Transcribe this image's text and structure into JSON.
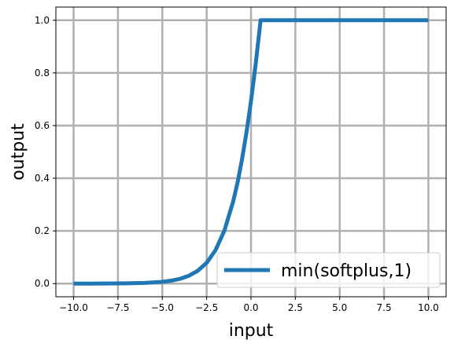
{
  "chart_data": {
    "type": "line",
    "xlabel": "input",
    "ylabel": "output",
    "xlim": [
      -11.0,
      11.0
    ],
    "ylim": [
      -0.05,
      1.05
    ],
    "xticks": [
      -10.0,
      -7.5,
      -5.0,
      -2.5,
      0.0,
      2.5,
      5.0,
      7.5,
      10.0
    ],
    "xtick_labels": [
      "−10.0",
      "−7.5",
      "−5.0",
      "−2.5",
      "0.0",
      "2.5",
      "5.0",
      "7.5",
      "10.0"
    ],
    "yticks": [
      0.0,
      0.2,
      0.4,
      0.6,
      0.8,
      1.0
    ],
    "ytick_labels": [
      "0.0",
      "0.2",
      "0.4",
      "0.6",
      "0.8",
      "1.0"
    ],
    "grid": true,
    "legend_position": "lower-right",
    "series": [
      {
        "name": "min(softplus,1)",
        "color": "#1f77b4",
        "x": [
          -10,
          -9,
          -8,
          -7,
          -6,
          -5,
          -4.5,
          -4,
          -3.5,
          -3,
          -2.5,
          -2,
          -1.5,
          -1,
          -0.75,
          -0.5,
          -0.25,
          0,
          0.25,
          0.5,
          0.5413,
          1,
          2,
          3,
          4,
          5,
          6,
          7,
          8,
          9,
          10
        ],
        "y": [
          4.54e-05,
          0.000123,
          0.000335,
          0.000911,
          0.00248,
          0.00672,
          0.011,
          0.0181,
          0.0298,
          0.0486,
          0.0789,
          0.127,
          0.201,
          0.313,
          0.386,
          0.474,
          0.576,
          0.693,
          0.826,
          0.974,
          1.0,
          1.0,
          1.0,
          1.0,
          1.0,
          1.0,
          1.0,
          1.0,
          1.0,
          1.0,
          1.0
        ]
      }
    ]
  }
}
